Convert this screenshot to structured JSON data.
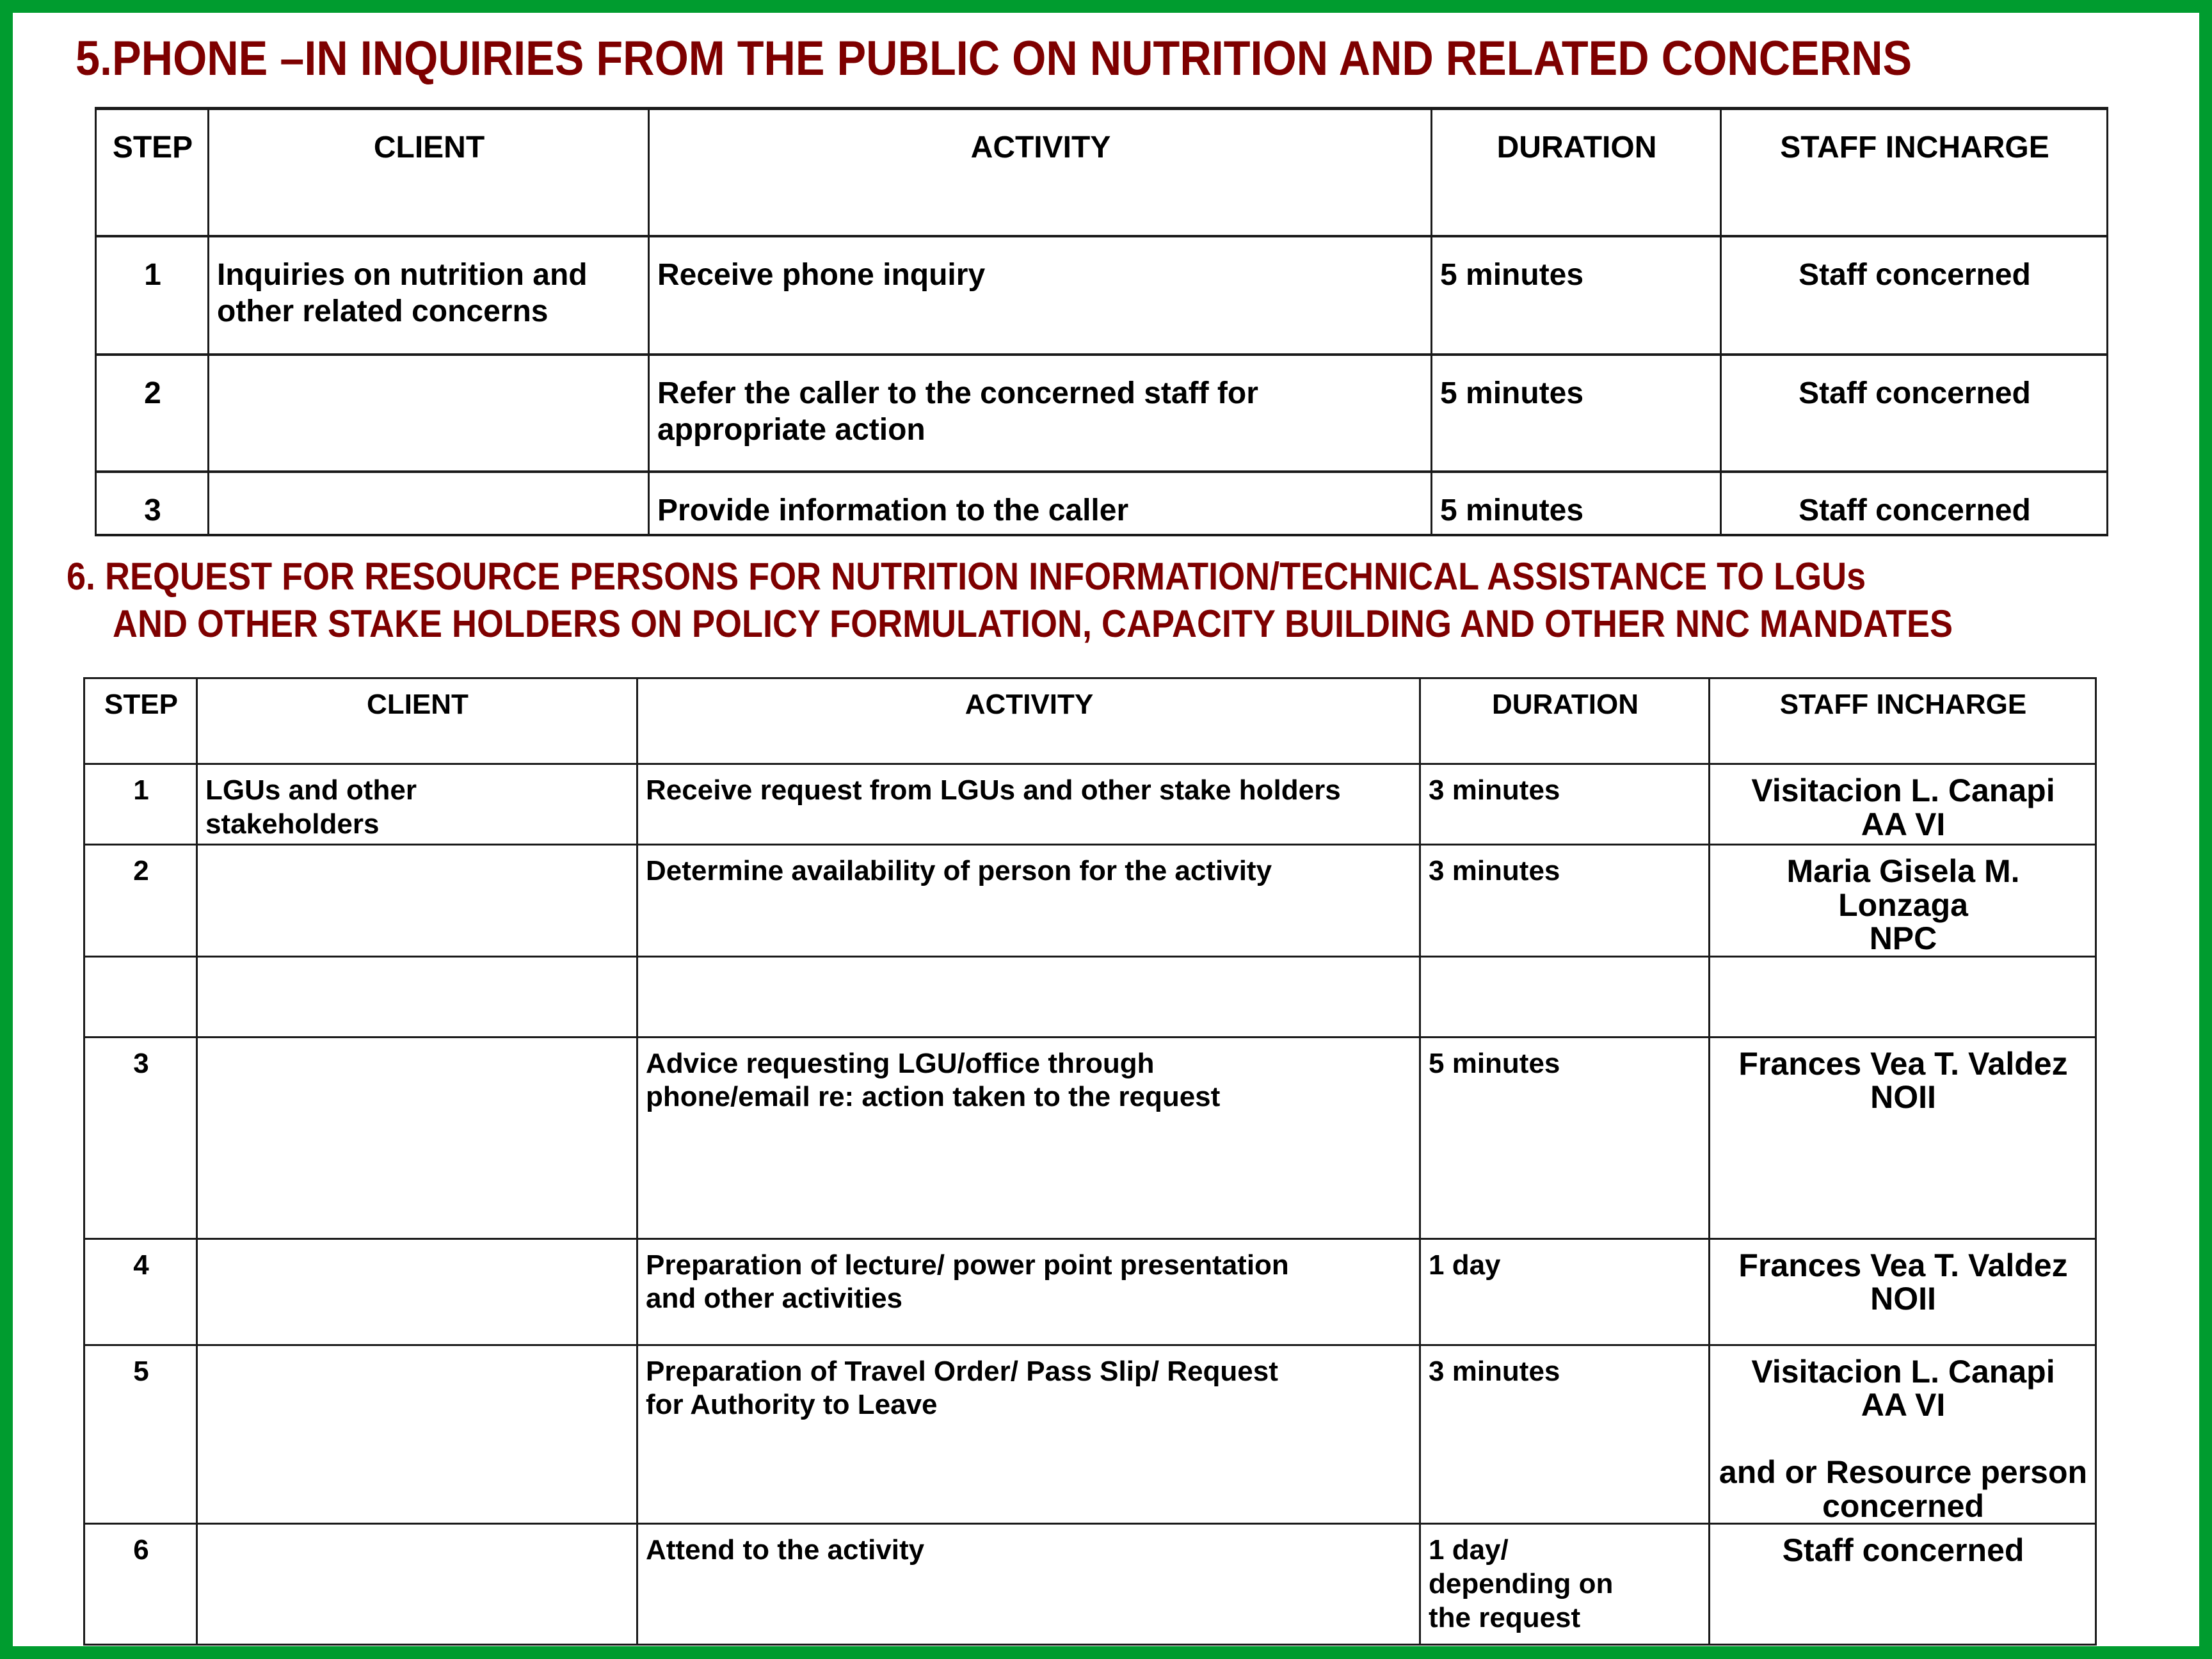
{
  "section5": {
    "title": "5.PHONE –IN INQUIRIES FROM THE PUBLIC ON NUTRITION AND RELATED CONCERNS",
    "headers": [
      "STEP",
      "CLIENT",
      "ACTIVITY",
      "DURATION",
      "STAFF INCHARGE"
    ],
    "rows": [
      {
        "step": "1",
        "client": "Inquiries on nutrition and\nother related concerns",
        "activity": "Receive phone inquiry",
        "duration": "5 minutes",
        "staff": "Staff concerned"
      },
      {
        "step": "2",
        "client": "",
        "activity": "Refer the caller to the concerned staff for\nappropriate action",
        "duration": "5 minutes",
        "staff": "Staff concerned"
      },
      {
        "step": "3",
        "client": "",
        "activity": "Provide information to the caller",
        "duration": "5 minutes",
        "staff": "Staff concerned"
      }
    ]
  },
  "section6": {
    "title_line1": "6. REQUEST FOR RESOURCE PERSONS FOR NUTRITION INFORMATION/TECHNICAL ASSISTANCE TO LGUs",
    "title_line2": "AND  OTHER STAKE HOLDERS ON  POLICY FORMULATION, CAPACITY BUILDING AND OTHER NNC MANDATES",
    "headers": [
      "STEP",
      "CLIENT",
      "ACTIVITY",
      "DURATION",
      "STAFF INCHARGE"
    ],
    "rows": [
      {
        "step": "1",
        "client": "LGUs and other\nstakeholders",
        "activity": "Receive request from LGUs and other stake holders",
        "duration": "3 minutes",
        "staff": "Visitacion L. Canapi\nAA VI"
      },
      {
        "step": "2",
        "client": "",
        "activity": "Determine availability of person for the activity",
        "duration": "3 minutes",
        "staff": "Maria  Gisela M. Lonzaga\nNPC"
      },
      {
        "step": "",
        "client": "",
        "activity": "",
        "duration": "",
        "staff": ""
      },
      {
        "step": "3",
        "client": "",
        "activity": "Advice requesting LGU/office through\nphone/email re: action taken to the request",
        "duration": "5 minutes",
        "staff": "Frances Vea T. Valdez\nNOII"
      },
      {
        "step": "4",
        "client": "",
        "activity": "Preparation of lecture/ power point presentation\nand other activities",
        "duration": "1 day",
        "staff": "Frances Vea T. Valdez\nNOII"
      },
      {
        "step": "5",
        "client": "",
        "activity": "Preparation of Travel Order/ Pass Slip/ Request\nfor Authority to Leave",
        "duration": "3 minutes",
        "staff": "Visitacion L. Canapi\nAA VI\n\nand or Resource person\nconcerned"
      },
      {
        "step": "6",
        "client": "",
        "activity": "Attend to the activity",
        "duration": "1 day/\ndepending on\nthe request",
        "staff": "Staff concerned"
      }
    ]
  },
  "colors": {
    "border": "#009c2f",
    "title": "#7e0000"
  }
}
